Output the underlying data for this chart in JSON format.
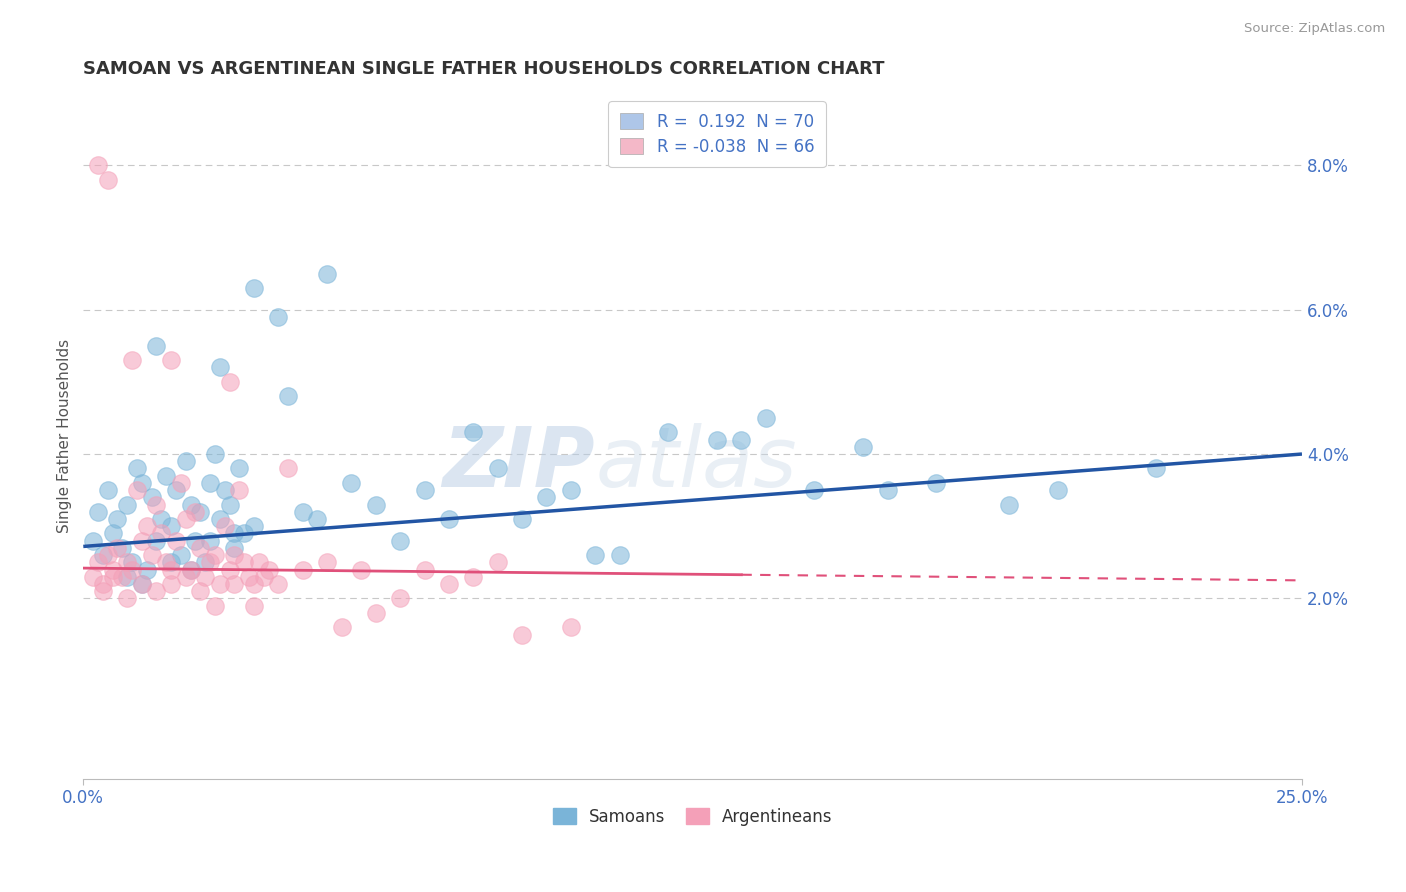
{
  "title": "SAMOAN VS ARGENTINEAN SINGLE FATHER HOUSEHOLDS CORRELATION CHART",
  "source": "Source: ZipAtlas.com",
  "ylabel": "Single Father Households",
  "xlim": [
    0.0,
    25.0
  ],
  "ylim": [
    -0.5,
    9.0
  ],
  "plot_ylim": [
    -0.5,
    9.0
  ],
  "yticks": [
    2.0,
    4.0,
    6.0,
    8.0
  ],
  "samoan_color": "#7ab4d8",
  "argentinean_color": "#f4a0b8",
  "samoan_line_color": "#2255a4",
  "arg_line_color": "#e0507a",
  "watermark": "ZIPatlas",
  "background_color": "#ffffff",
  "grid_color": "#c8c8c8",
  "title_color": "#333333",
  "axis_label_color": "#4472c4",
  "legend_box_blue": "#aec6e8",
  "legend_box_pink": "#f4b8c8",
  "samoan_line_y0": 2.72,
  "samoan_line_y1": 4.0,
  "arg_line_y0": 2.42,
  "arg_line_y1": 2.25,
  "arg_solid_end_x": 13.5,
  "samoan_points": [
    [
      0.2,
      2.8
    ],
    [
      0.3,
      3.2
    ],
    [
      0.4,
      2.6
    ],
    [
      0.5,
      3.5
    ],
    [
      0.6,
      2.9
    ],
    [
      0.7,
      3.1
    ],
    [
      0.8,
      2.7
    ],
    [
      0.9,
      3.3
    ],
    [
      1.0,
      2.5
    ],
    [
      1.1,
      3.8
    ],
    [
      1.2,
      3.6
    ],
    [
      1.3,
      2.4
    ],
    [
      1.4,
      3.4
    ],
    [
      1.5,
      2.8
    ],
    [
      1.6,
      3.1
    ],
    [
      1.7,
      3.7
    ],
    [
      1.8,
      3.0
    ],
    [
      1.9,
      3.5
    ],
    [
      2.0,
      2.6
    ],
    [
      2.1,
      3.9
    ],
    [
      2.2,
      3.3
    ],
    [
      2.3,
      2.8
    ],
    [
      2.4,
      3.2
    ],
    [
      2.5,
      2.5
    ],
    [
      2.6,
      3.6
    ],
    [
      2.7,
      4.0
    ],
    [
      2.8,
      3.1
    ],
    [
      2.9,
      3.5
    ],
    [
      3.0,
      3.3
    ],
    [
      3.1,
      2.7
    ],
    [
      3.2,
      3.8
    ],
    [
      3.3,
      2.9
    ],
    [
      3.5,
      6.3
    ],
    [
      4.0,
      5.9
    ],
    [
      4.2,
      4.8
    ],
    [
      4.5,
      3.2
    ],
    [
      5.0,
      6.5
    ],
    [
      5.5,
      3.6
    ],
    [
      6.0,
      3.3
    ],
    [
      6.5,
      2.8
    ],
    [
      7.0,
      3.5
    ],
    [
      7.5,
      3.1
    ],
    [
      8.0,
      4.3
    ],
    [
      8.5,
      3.8
    ],
    [
      9.0,
      3.1
    ],
    [
      9.5,
      3.4
    ],
    [
      10.0,
      3.5
    ],
    [
      10.5,
      2.6
    ],
    [
      11.0,
      2.6
    ],
    [
      12.0,
      4.3
    ],
    [
      13.0,
      4.2
    ],
    [
      13.5,
      4.2
    ],
    [
      14.0,
      4.5
    ],
    [
      15.0,
      3.5
    ],
    [
      16.0,
      4.1
    ],
    [
      16.5,
      3.5
    ],
    [
      17.5,
      3.6
    ],
    [
      19.0,
      3.3
    ],
    [
      20.0,
      3.5
    ],
    [
      22.0,
      3.8
    ],
    [
      1.5,
      5.5
    ],
    [
      2.8,
      5.2
    ],
    [
      0.9,
      2.3
    ],
    [
      1.2,
      2.2
    ],
    [
      1.8,
      2.5
    ],
    [
      2.2,
      2.4
    ],
    [
      2.6,
      2.8
    ],
    [
      3.1,
      2.9
    ],
    [
      3.5,
      3.0
    ],
    [
      4.8,
      3.1
    ]
  ],
  "argentinean_points": [
    [
      0.2,
      2.3
    ],
    [
      0.3,
      2.5
    ],
    [
      0.4,
      2.2
    ],
    [
      0.5,
      2.6
    ],
    [
      0.6,
      2.4
    ],
    [
      0.7,
      2.7
    ],
    [
      0.8,
      2.3
    ],
    [
      0.9,
      2.5
    ],
    [
      1.0,
      2.4
    ],
    [
      1.1,
      3.5
    ],
    [
      1.2,
      2.8
    ],
    [
      1.3,
      3.0
    ],
    [
      1.4,
      2.6
    ],
    [
      1.5,
      3.3
    ],
    [
      1.6,
      2.9
    ],
    [
      1.7,
      2.5
    ],
    [
      1.8,
      2.2
    ],
    [
      1.9,
      2.8
    ],
    [
      2.0,
      3.6
    ],
    [
      2.1,
      3.1
    ],
    [
      2.2,
      2.4
    ],
    [
      2.3,
      3.2
    ],
    [
      2.4,
      2.7
    ],
    [
      2.5,
      2.3
    ],
    [
      2.6,
      2.5
    ],
    [
      2.7,
      2.6
    ],
    [
      2.8,
      2.2
    ],
    [
      2.9,
      3.0
    ],
    [
      3.0,
      2.4
    ],
    [
      3.1,
      2.6
    ],
    [
      3.2,
      3.5
    ],
    [
      3.3,
      2.5
    ],
    [
      3.4,
      2.3
    ],
    [
      3.5,
      2.2
    ],
    [
      3.6,
      2.5
    ],
    [
      3.7,
      2.3
    ],
    [
      3.8,
      2.4
    ],
    [
      4.0,
      2.2
    ],
    [
      4.2,
      3.8
    ],
    [
      4.5,
      2.4
    ],
    [
      5.0,
      2.5
    ],
    [
      5.3,
      1.6
    ],
    [
      5.7,
      2.4
    ],
    [
      6.0,
      1.8
    ],
    [
      6.5,
      2.0
    ],
    [
      7.0,
      2.4
    ],
    [
      7.5,
      2.2
    ],
    [
      8.0,
      2.3
    ],
    [
      8.5,
      2.5
    ],
    [
      9.0,
      1.5
    ],
    [
      0.3,
      8.0
    ],
    [
      0.5,
      7.8
    ],
    [
      1.0,
      5.3
    ],
    [
      1.8,
      5.3
    ],
    [
      3.0,
      5.0
    ],
    [
      0.4,
      2.1
    ],
    [
      0.6,
      2.3
    ],
    [
      0.9,
      2.0
    ],
    [
      1.2,
      2.2
    ],
    [
      1.5,
      2.1
    ],
    [
      1.8,
      2.4
    ],
    [
      2.1,
      2.3
    ],
    [
      2.4,
      2.1
    ],
    [
      2.7,
      1.9
    ],
    [
      3.1,
      2.2
    ],
    [
      3.5,
      1.9
    ],
    [
      10.0,
      1.6
    ]
  ]
}
